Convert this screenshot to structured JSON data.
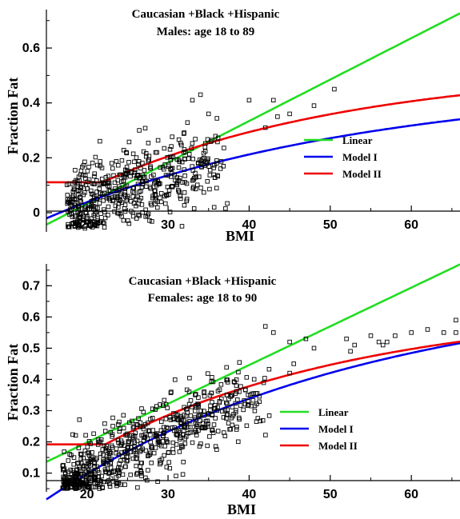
{
  "chart_data": [
    {
      "type": "scatter",
      "title": "Caucasian +Black +Hispanic",
      "subtitle": "Males: age 18 to 89",
      "xlabel": "BMI",
      "ylabel": "Fraction Fat",
      "xlim": [
        15,
        66
      ],
      "ylim": [
        -0.07,
        0.74
      ],
      "xticks": [
        20,
        30,
        40,
        50,
        60
      ],
      "yticks": [
        0,
        0.2,
        0.4,
        0.6
      ],
      "grid": false,
      "legend_position": "right",
      "cloud": {
        "n": 520,
        "bmi_min": 17.5,
        "bmi_max": 36,
        "noise": 0.07,
        "seed": 11
      },
      "outliers": [
        [
          36,
          0.19
        ],
        [
          40,
          0.41
        ],
        [
          42,
          0.31
        ],
        [
          43,
          0.41
        ],
        [
          43.5,
          0.35
        ],
        [
          45,
          0.36
        ],
        [
          48,
          0.39
        ],
        [
          50.5,
          0.45
        ],
        [
          34,
          0.43
        ],
        [
          33,
          0.41
        ],
        [
          35,
          0.36
        ]
      ],
      "series": [
        {
          "name": "Linear",
          "color": "#22dd22",
          "kind": "linear",
          "a": -0.27,
          "b": 0.0151
        },
        {
          "name": "Model I",
          "color": "#0000ee",
          "kind": "model1",
          "A": 0.48,
          "c": 40,
          "x0": 16.67
        },
        {
          "name": "Model II",
          "color": "#ee0000",
          "kind": "model2",
          "floor": 0.111,
          "A": 0.535,
          "c": 32,
          "x0": 14.5
        }
      ]
    },
    {
      "type": "scatter",
      "title": "Caucasian +Black +Hispanic",
      "subtitle": "Females: age 18 to 90",
      "xlabel": "BMI",
      "ylabel": "Fraction Fat",
      "xlim": [
        15,
        66
      ],
      "ylim": [
        0.04,
        0.77
      ],
      "xticks": [
        20,
        30,
        40,
        50,
        60
      ],
      "yticks": [
        0.1,
        0.2,
        0.3,
        0.4,
        0.5,
        0.6,
        0.7
      ],
      "grid": false,
      "legend_position": "right",
      "cloud": {
        "n": 680,
        "bmi_min": 17,
        "bmi_max": 41,
        "noise": 0.055,
        "seed": 29
      },
      "outliers": [
        [
          45,
          0.52
        ],
        [
          45.5,
          0.45
        ],
        [
          45,
          0.42
        ],
        [
          47,
          0.53
        ],
        [
          52,
          0.53
        ],
        [
          52.5,
          0.49
        ],
        [
          55,
          0.54
        ],
        [
          56,
          0.52
        ],
        [
          56.5,
          0.51
        ],
        [
          58,
          0.54
        ],
        [
          60,
          0.55
        ],
        [
          62,
          0.56
        ],
        [
          64,
          0.55
        ],
        [
          65.5,
          0.59
        ],
        [
          65.5,
          0.55
        ],
        [
          43,
          0.55
        ],
        [
          42,
          0.57
        ],
        [
          48,
          0.5
        ],
        [
          53,
          0.51
        ],
        [
          57,
          0.52
        ]
      ],
      "series": [
        {
          "name": "Linear",
          "color": "#22dd22",
          "kind": "linear",
          "a": -0.05,
          "b": 0.0124
        },
        {
          "name": "Model I",
          "color": "#0000ee",
          "kind": "model1",
          "A": 0.71,
          "c": 40,
          "x0": 14.1
        },
        {
          "name": "Model II",
          "color": "#ee0000",
          "kind": "model2",
          "floor": 0.192,
          "A": 0.64,
          "c": 33,
          "x0": 10.5
        }
      ]
    }
  ]
}
